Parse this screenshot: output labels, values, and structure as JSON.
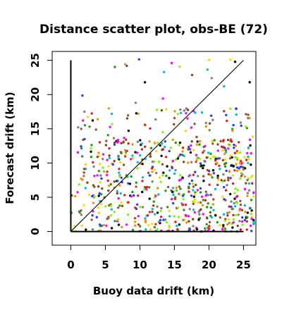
{
  "chart_data": {
    "type": "scatter",
    "title": "Distance scatter plot, obs-BE (72)",
    "xlabel": "Buoy data drift (km)",
    "ylabel": "Forecast drift (km)",
    "xlim": [
      -2.7,
      26.8
    ],
    "ylim": [
      -2.0,
      26.3
    ],
    "xticks": [
      0,
      5,
      10,
      15,
      20,
      25
    ],
    "yticks": [
      0,
      5,
      10,
      15,
      20,
      25
    ],
    "grid": false,
    "reference_lines": [
      {
        "name": "one-to-one",
        "x": [
          0,
          25
        ],
        "y": [
          0,
          25
        ]
      },
      {
        "name": "x-axis-line",
        "x": [
          0,
          25
        ],
        "y": [
          0,
          0
        ]
      },
      {
        "name": "y-axis-line",
        "x": [
          0,
          0
        ],
        "y": [
          0,
          25
        ]
      }
    ],
    "point_colors": [
      "#e41a1c",
      "#1a9e1a",
      "#1f3fff",
      "#00bcd4",
      "#ff00ff",
      "#ffd700",
      "#808080",
      "#000000",
      "#ff8c00",
      "#8b4513",
      "#7cfc00",
      "#a0522d"
    ],
    "point_count": 800,
    "point_summary": "Dense cloud of colored points; x spread 0-26.5 km, forecast drift mostly 0-16 km, sparse up to 25 km; many points below the 1:1 line",
    "points_sample": [
      [
        3.2,
        10.1
      ],
      [
        5.8,
        6.9
      ],
      [
        8.1,
        24.2
      ],
      [
        13.5,
        23.3
      ],
      [
        14.6,
        24.6
      ],
      [
        23.1,
        25.1
      ],
      [
        20.4,
        22.4
      ],
      [
        25.9,
        21.8
      ],
      [
        1.5,
        7.7
      ],
      [
        10.3,
        12.0
      ],
      [
        15.2,
        10.5
      ],
      [
        18.7,
        3.1
      ],
      [
        22.8,
        7.5
      ],
      [
        25.5,
        15.1
      ],
      [
        4.2,
        1.0
      ],
      [
        12.7,
        5.4
      ],
      [
        16.9,
        16.5
      ],
      [
        21.6,
        0.9
      ],
      [
        9.4,
        18.8
      ],
      [
        6.6,
        13.2
      ]
    ]
  }
}
